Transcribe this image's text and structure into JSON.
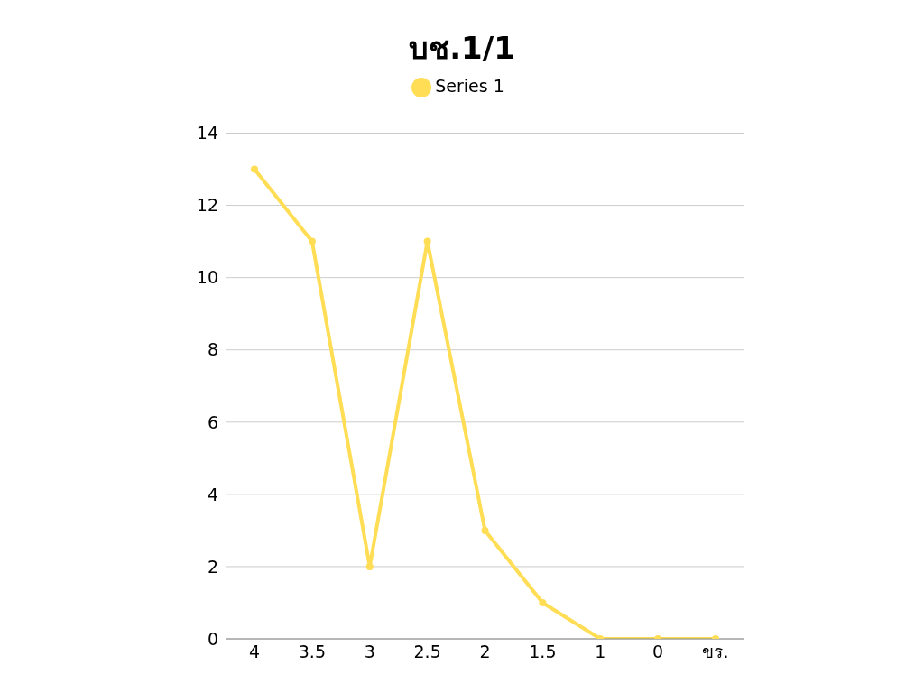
{
  "chart_data": {
    "type": "line",
    "title": "บช.1/1",
    "categories": [
      "4",
      "3.5",
      "3",
      "2.5",
      "2",
      "1.5",
      "1",
      "0",
      "ขร."
    ],
    "series": [
      {
        "name": "Series 1",
        "color": "#ffdd55",
        "values": [
          13,
          11,
          2,
          11,
          3,
          1,
          0,
          0,
          0
        ]
      }
    ],
    "ylim": [
      0,
      14
    ],
    "yticks": [
      0,
      2,
      4,
      6,
      8,
      10,
      12,
      14
    ],
    "grid": "y",
    "legend": "top",
    "marker": "circle",
    "line_style": "solid"
  }
}
